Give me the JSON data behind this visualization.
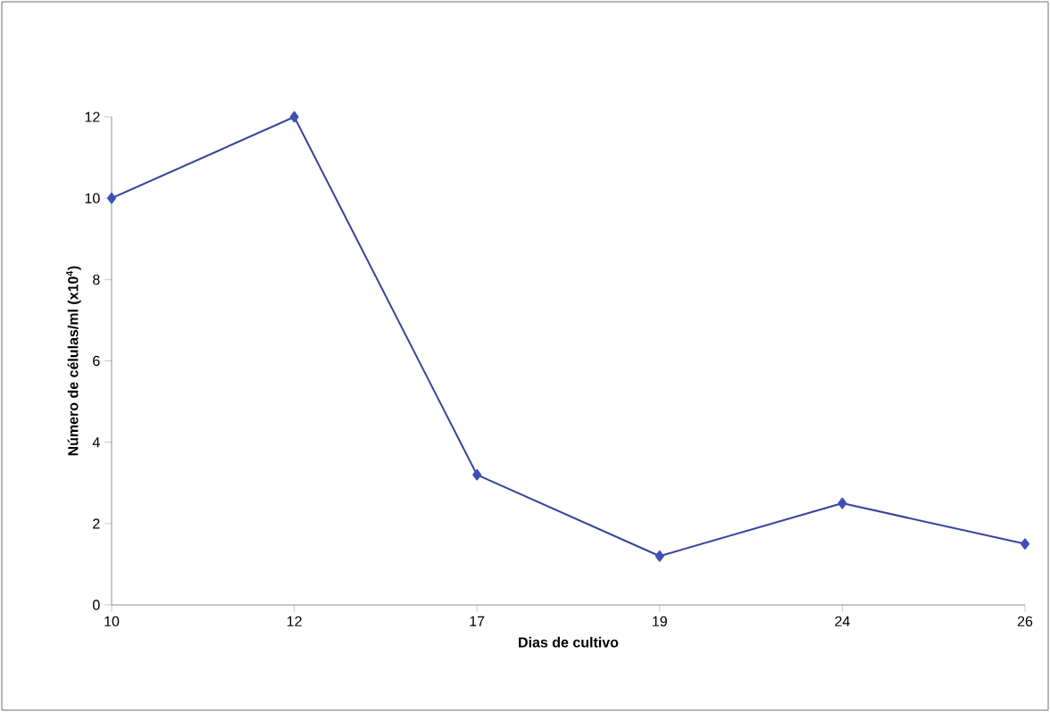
{
  "chart_data": {
    "type": "line",
    "xlabel": "Dias de cultivo",
    "ylabel": "Número de células/ml (x10$^{4}$)",
    "categories": [
      "10",
      "12",
      "17",
      "19",
      "24",
      "26"
    ],
    "series": [
      {
        "color": "#3f4fb5",
        "values": [
          10,
          12,
          3.2,
          1.2,
          2.5,
          1.5
        ]
      }
    ],
    "ylim": [
      0,
      12
    ],
    "yticks": [
      0,
      2,
      4,
      6,
      8,
      10,
      12
    ],
    "grid": false,
    "marker": "diamond",
    "line_style": "solid"
  }
}
